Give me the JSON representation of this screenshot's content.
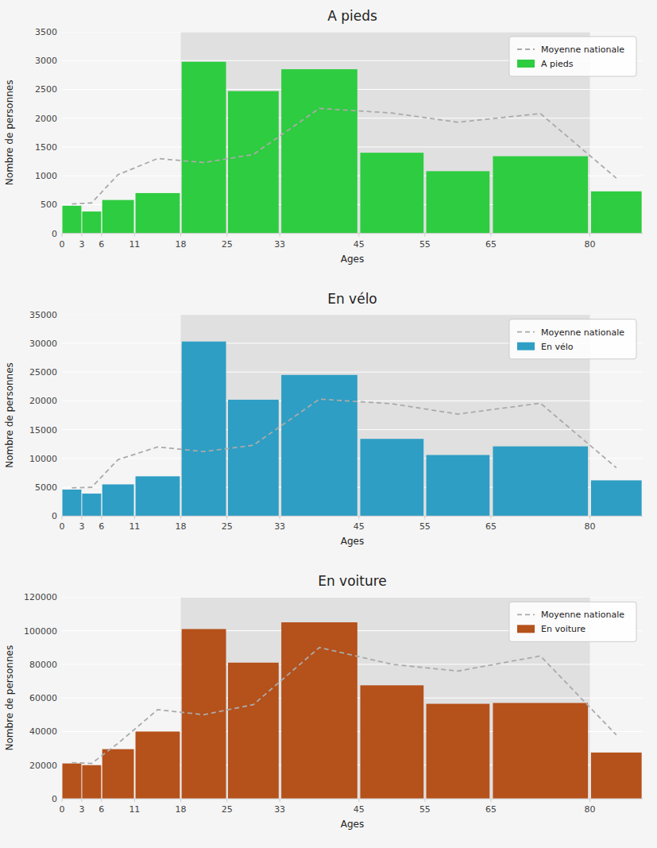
{
  "chart_data": [
    {
      "type": "bar",
      "title": "A pieds",
      "xlabel": "Ages",
      "ylabel": "Nombre de personnes",
      "bins": [
        0,
        3,
        6,
        11,
        18,
        25,
        33,
        45,
        55,
        65,
        80,
        88
      ],
      "xlim": [
        0,
        88
      ],
      "xticks": [
        0,
        3,
        6,
        11,
        18,
        25,
        33,
        45,
        55,
        65,
        80
      ],
      "ylim": [
        0,
        3500
      ],
      "yticks": [
        0,
        500,
        1000,
        1500,
        2000,
        2500,
        3000,
        3500
      ],
      "grid": true,
      "legend": "upper right",
      "span": {
        "x": [
          18,
          80
        ],
        "color": "#e0e0e0"
      },
      "series": [
        {
          "name": "Moyenne nationale",
          "type": "line",
          "line_style": "dashed",
          "color": "#aaaaaa",
          "x": [
            1.5,
            4.5,
            8.5,
            14.5,
            21.5,
            29,
            39,
            50,
            60,
            72.5,
            84
          ],
          "values": [
            510,
            530,
            1020,
            1300,
            1230,
            1370,
            2170,
            2090,
            1930,
            2080,
            960
          ]
        },
        {
          "name": "A pieds",
          "type": "bar",
          "color": "#2ecc40",
          "values": [
            480,
            380,
            580,
            700,
            2980,
            2470,
            2850,
            1400,
            1080,
            1340,
            730
          ]
        }
      ]
    },
    {
      "type": "bar",
      "title": "En vélo",
      "xlabel": "Ages",
      "ylabel": "Nombre de personnes",
      "bins": [
        0,
        3,
        6,
        11,
        18,
        25,
        33,
        45,
        55,
        65,
        80,
        88
      ],
      "xlim": [
        0,
        88
      ],
      "xticks": [
        0,
        3,
        6,
        11,
        18,
        25,
        33,
        45,
        55,
        65,
        80
      ],
      "ylim": [
        0,
        35000
      ],
      "yticks": [
        0,
        5000,
        10000,
        15000,
        20000,
        25000,
        30000,
        35000
      ],
      "grid": true,
      "legend": "upper right",
      "span": {
        "x": [
          18,
          80
        ],
        "color": "#e0e0e0"
      },
      "series": [
        {
          "name": "Moyenne nationale",
          "type": "line",
          "line_style": "dashed",
          "color": "#aaaaaa",
          "x": [
            1.5,
            4.5,
            8.5,
            14.5,
            21.5,
            29,
            39,
            50,
            60,
            72.5,
            84
          ],
          "values": [
            4900,
            5000,
            9800,
            12000,
            11200,
            12300,
            20300,
            19500,
            17700,
            19600,
            8400
          ]
        },
        {
          "name": "En vélo",
          "type": "bar",
          "color": "#2e9ec4",
          "values": [
            4600,
            3900,
            5500,
            6900,
            30300,
            20200,
            24500,
            13400,
            10600,
            12100,
            6200
          ]
        }
      ]
    },
    {
      "type": "bar",
      "title": "En voiture",
      "xlabel": "Ages",
      "ylabel": "Nombre de personnes",
      "bins": [
        0,
        3,
        6,
        11,
        18,
        25,
        33,
        45,
        55,
        65,
        80,
        88
      ],
      "xlim": [
        0,
        88
      ],
      "xticks": [
        0,
        3,
        6,
        11,
        18,
        25,
        33,
        45,
        55,
        65,
        80
      ],
      "ylim": [
        0,
        120000
      ],
      "yticks": [
        0,
        20000,
        40000,
        60000,
        80000,
        100000,
        120000
      ],
      "grid": true,
      "legend": "upper right",
      "span": {
        "x": [
          18,
          80
        ],
        "color": "#e0e0e0"
      },
      "series": [
        {
          "name": "Moyenne nationale",
          "type": "line",
          "line_style": "dashed",
          "color": "#aaaaaa",
          "x": [
            1.5,
            4.5,
            8.5,
            14.5,
            21.5,
            29,
            39,
            50,
            60,
            72.5,
            84
          ],
          "values": [
            21500,
            21000,
            33000,
            53000,
            50000,
            56000,
            90000,
            80000,
            76000,
            85000,
            38000
          ]
        },
        {
          "name": "En voiture",
          "type": "bar",
          "color": "#b5511a",
          "values": [
            21000,
            20000,
            29500,
            40000,
            101000,
            81000,
            105000,
            67500,
            56500,
            57000,
            27500
          ]
        }
      ]
    }
  ]
}
